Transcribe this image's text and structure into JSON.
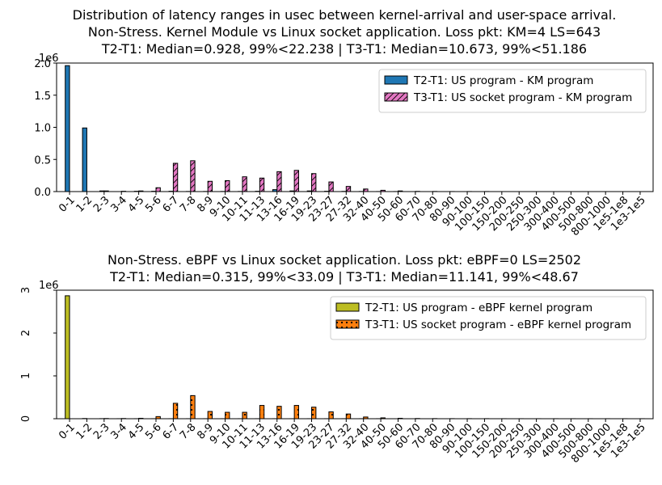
{
  "categories": [
    "0-1",
    "1-2",
    "2-3",
    "3-4",
    "4-5",
    "5-6",
    "6-7",
    "7-8",
    "8-9",
    "9-10",
    "10-11",
    "11-13",
    "13-16",
    "16-19",
    "19-23",
    "23-27",
    "27-32",
    "32-40",
    "40-50",
    "50-60",
    "60-70",
    "70-80",
    "80-90",
    "90-100",
    "100-150",
    "150-200",
    "200-250",
    "250-300",
    "300-400",
    "400-500",
    "500-800",
    "800-1000",
    "1e5-1e8",
    "1e3-1e5"
  ],
  "chart_data": [
    {
      "type": "bar",
      "title_lines": [
        "Distribution of latency ranges in usec between kernel-arrival and user-space arrival.",
        "Non-Stress. Kernel Module vs Linux socket application. Loss pkt: KM=4 LS=643",
        "T2-T1: Median=0.928, 99%<22.238 | T3-T1: Median=10.673, 99%<51.186"
      ],
      "ylim": [
        0,
        2.0
      ],
      "yticks": [
        0,
        0.5,
        1.0,
        1.5,
        2.0
      ],
      "ytick_labels": [
        "0.0",
        "0.5",
        "1.0",
        "1.5",
        "2.0"
      ],
      "yscale_label": "1e6",
      "legend_position": "upper right",
      "series": [
        {
          "name": "T2-T1: US program - KM program",
          "color": "#1f77b4",
          "hatch": "none",
          "values": [
            1.96,
            0.99,
            0.01,
            0,
            0.005,
            0.005,
            0.005,
            0.002,
            0.002,
            0.002,
            0.002,
            0.005,
            0.03,
            0.01,
            0.01,
            0.005,
            0.003,
            0.002,
            0.001,
            0.001,
            0,
            0,
            0,
            0,
            0,
            0,
            0,
            0,
            0,
            0,
            0,
            0,
            0,
            0
          ]
        },
        {
          "name": "T3-T1: US socket program - KM program",
          "color": "#e377c2",
          "hatch": "diag",
          "values": [
            0,
            0,
            0.01,
            0.005,
            0.01,
            0.06,
            0.44,
            0.48,
            0.16,
            0.17,
            0.23,
            0.21,
            0.31,
            0.33,
            0.28,
            0.15,
            0.08,
            0.04,
            0.02,
            0.01,
            0.003,
            0.002,
            0.001,
            0.001,
            0.001,
            0,
            0,
            0,
            0,
            0,
            0,
            0,
            0,
            0
          ]
        }
      ]
    },
    {
      "type": "bar",
      "title_lines": [
        "Non-Stress. eBPF vs Linux socket application. Loss pkt: eBPF=0 LS=2502",
        "T2-T1: Median=0.315, 99%<33.09 | T3-T1: Median=11.141, 99%<48.67"
      ],
      "ylim": [
        0,
        3.0
      ],
      "yticks": [
        0,
        1,
        2,
        3
      ],
      "ytick_labels": [
        "0",
        "1",
        "2",
        "3"
      ],
      "yscale_label": "1e6",
      "legend_position": "upper right",
      "series": [
        {
          "name": "T2-T1: US program - eBPF kernel program",
          "color": "#bcbd22",
          "hatch": "none",
          "values": [
            2.87,
            0.005,
            0.002,
            0.001,
            0.001,
            0.001,
            0.001,
            0.001,
            0.001,
            0.001,
            0.001,
            0.001,
            0.001,
            0.001,
            0.001,
            0.001,
            0.001,
            0.001,
            0.001,
            0,
            0,
            0,
            0,
            0,
            0,
            0,
            0,
            0,
            0,
            0,
            0,
            0,
            0,
            0
          ]
        },
        {
          "name": "T3-T1: US socket program - eBPF kernel program",
          "color": "#ff7f0e",
          "hatch": "dots",
          "values": [
            0,
            0,
            0.005,
            0.005,
            0.01,
            0.05,
            0.36,
            0.54,
            0.17,
            0.15,
            0.15,
            0.31,
            0.29,
            0.31,
            0.27,
            0.16,
            0.11,
            0.04,
            0.02,
            0.01,
            0.005,
            0.003,
            0.002,
            0.002,
            0.002,
            0.001,
            0.001,
            0.001,
            0.001,
            0.001,
            0.001,
            0.001,
            0.001,
            0.001
          ]
        }
      ]
    }
  ]
}
